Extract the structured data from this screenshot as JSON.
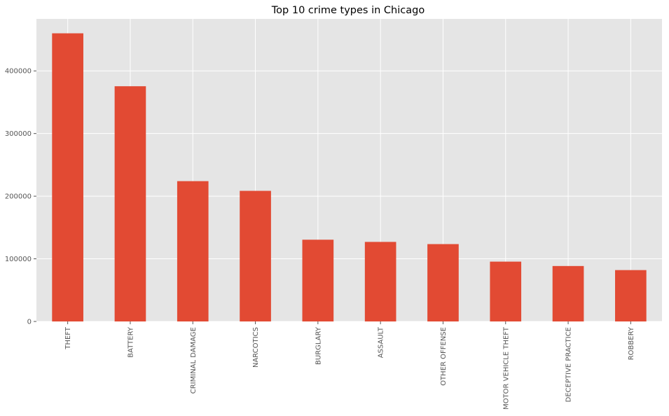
{
  "chart_data": {
    "type": "bar",
    "title": "Top 10 crime types in Chicago",
    "xlabel": "",
    "ylabel": "",
    "categories": [
      "THEFT",
      "BATTERY",
      "CRIMINAL DAMAGE",
      "NARCOTICS",
      "BURGLARY",
      "ASSAULT",
      "OTHER OFFENSE",
      "MOTOR VEHICLE THEFT",
      "DECEPTIVE PRACTICE",
      "ROBBERY"
    ],
    "values": [
      460000,
      375500,
      224000,
      208500,
      130500,
      127000,
      123500,
      95500,
      88500,
      82000
    ],
    "ylim": [
      0,
      483000
    ],
    "yticks": [
      0,
      100000,
      200000,
      300000,
      400000
    ],
    "ytick_labels": [
      "0",
      "100000",
      "200000",
      "300000",
      "400000"
    ],
    "grid": true,
    "legend": "none",
    "colors": {
      "bar": "#E24A33",
      "plot_background": "#E5E5E5",
      "grid": "#FFFFFF",
      "tick_text": "#555555",
      "title_text": "#000000"
    }
  }
}
